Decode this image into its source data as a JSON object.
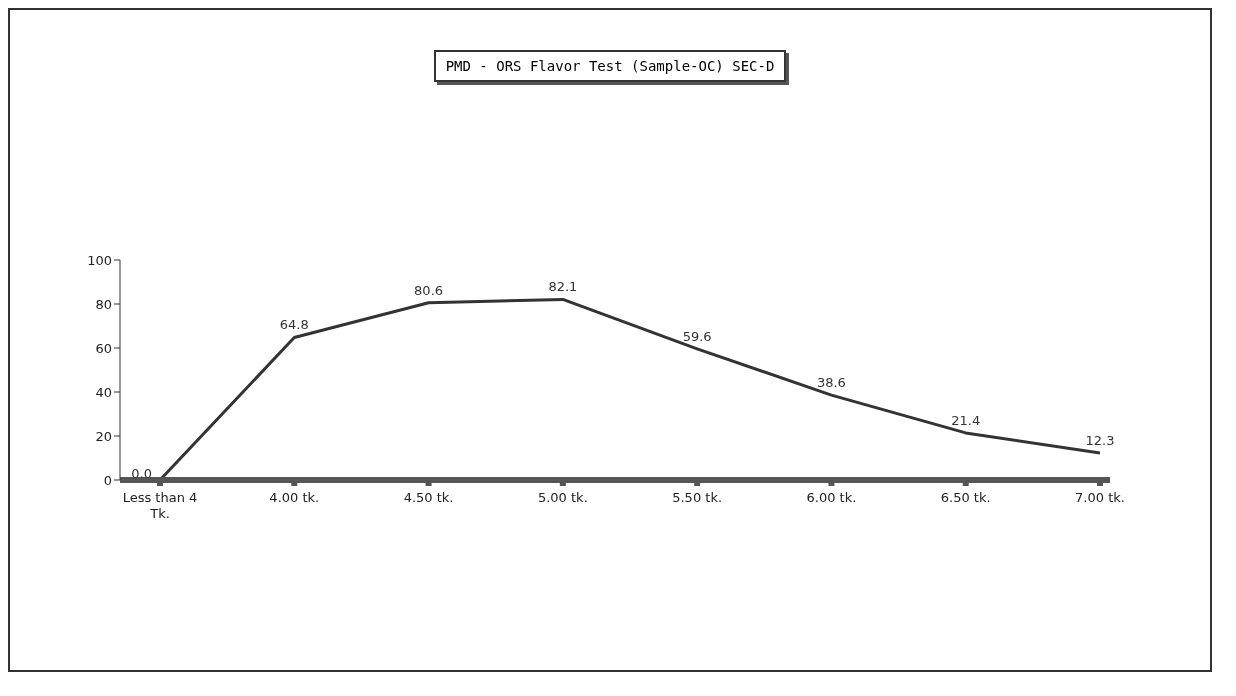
{
  "chart_data": {
    "type": "line",
    "title": "PMD - ORS Flavor Test (Sample-OC) SEC-D",
    "categories": [
      "Less than 4 Tk.",
      "4.00 tk.",
      "4.50 tk.",
      "5.00 tk.",
      "5.50 tk.",
      "6.00 tk.",
      "6.50 tk.",
      "7.00 tk."
    ],
    "series": [
      {
        "color": "#333333",
        "values": [
          0.0,
          64.8,
          80.6,
          82.1,
          59.6,
          38.6,
          21.4,
          12.3
        ],
        "value_labels": [
          "0.0",
          "64.8",
          "80.6",
          "82.1",
          "59.6",
          "38.6",
          "21.4",
          "12.3"
        ]
      }
    ],
    "ylim": [
      0,
      100
    ],
    "yticks": [
      0,
      20,
      40,
      60,
      80,
      100
    ],
    "grid": false,
    "legend": false,
    "marker": "none",
    "line_style": "solid"
  }
}
